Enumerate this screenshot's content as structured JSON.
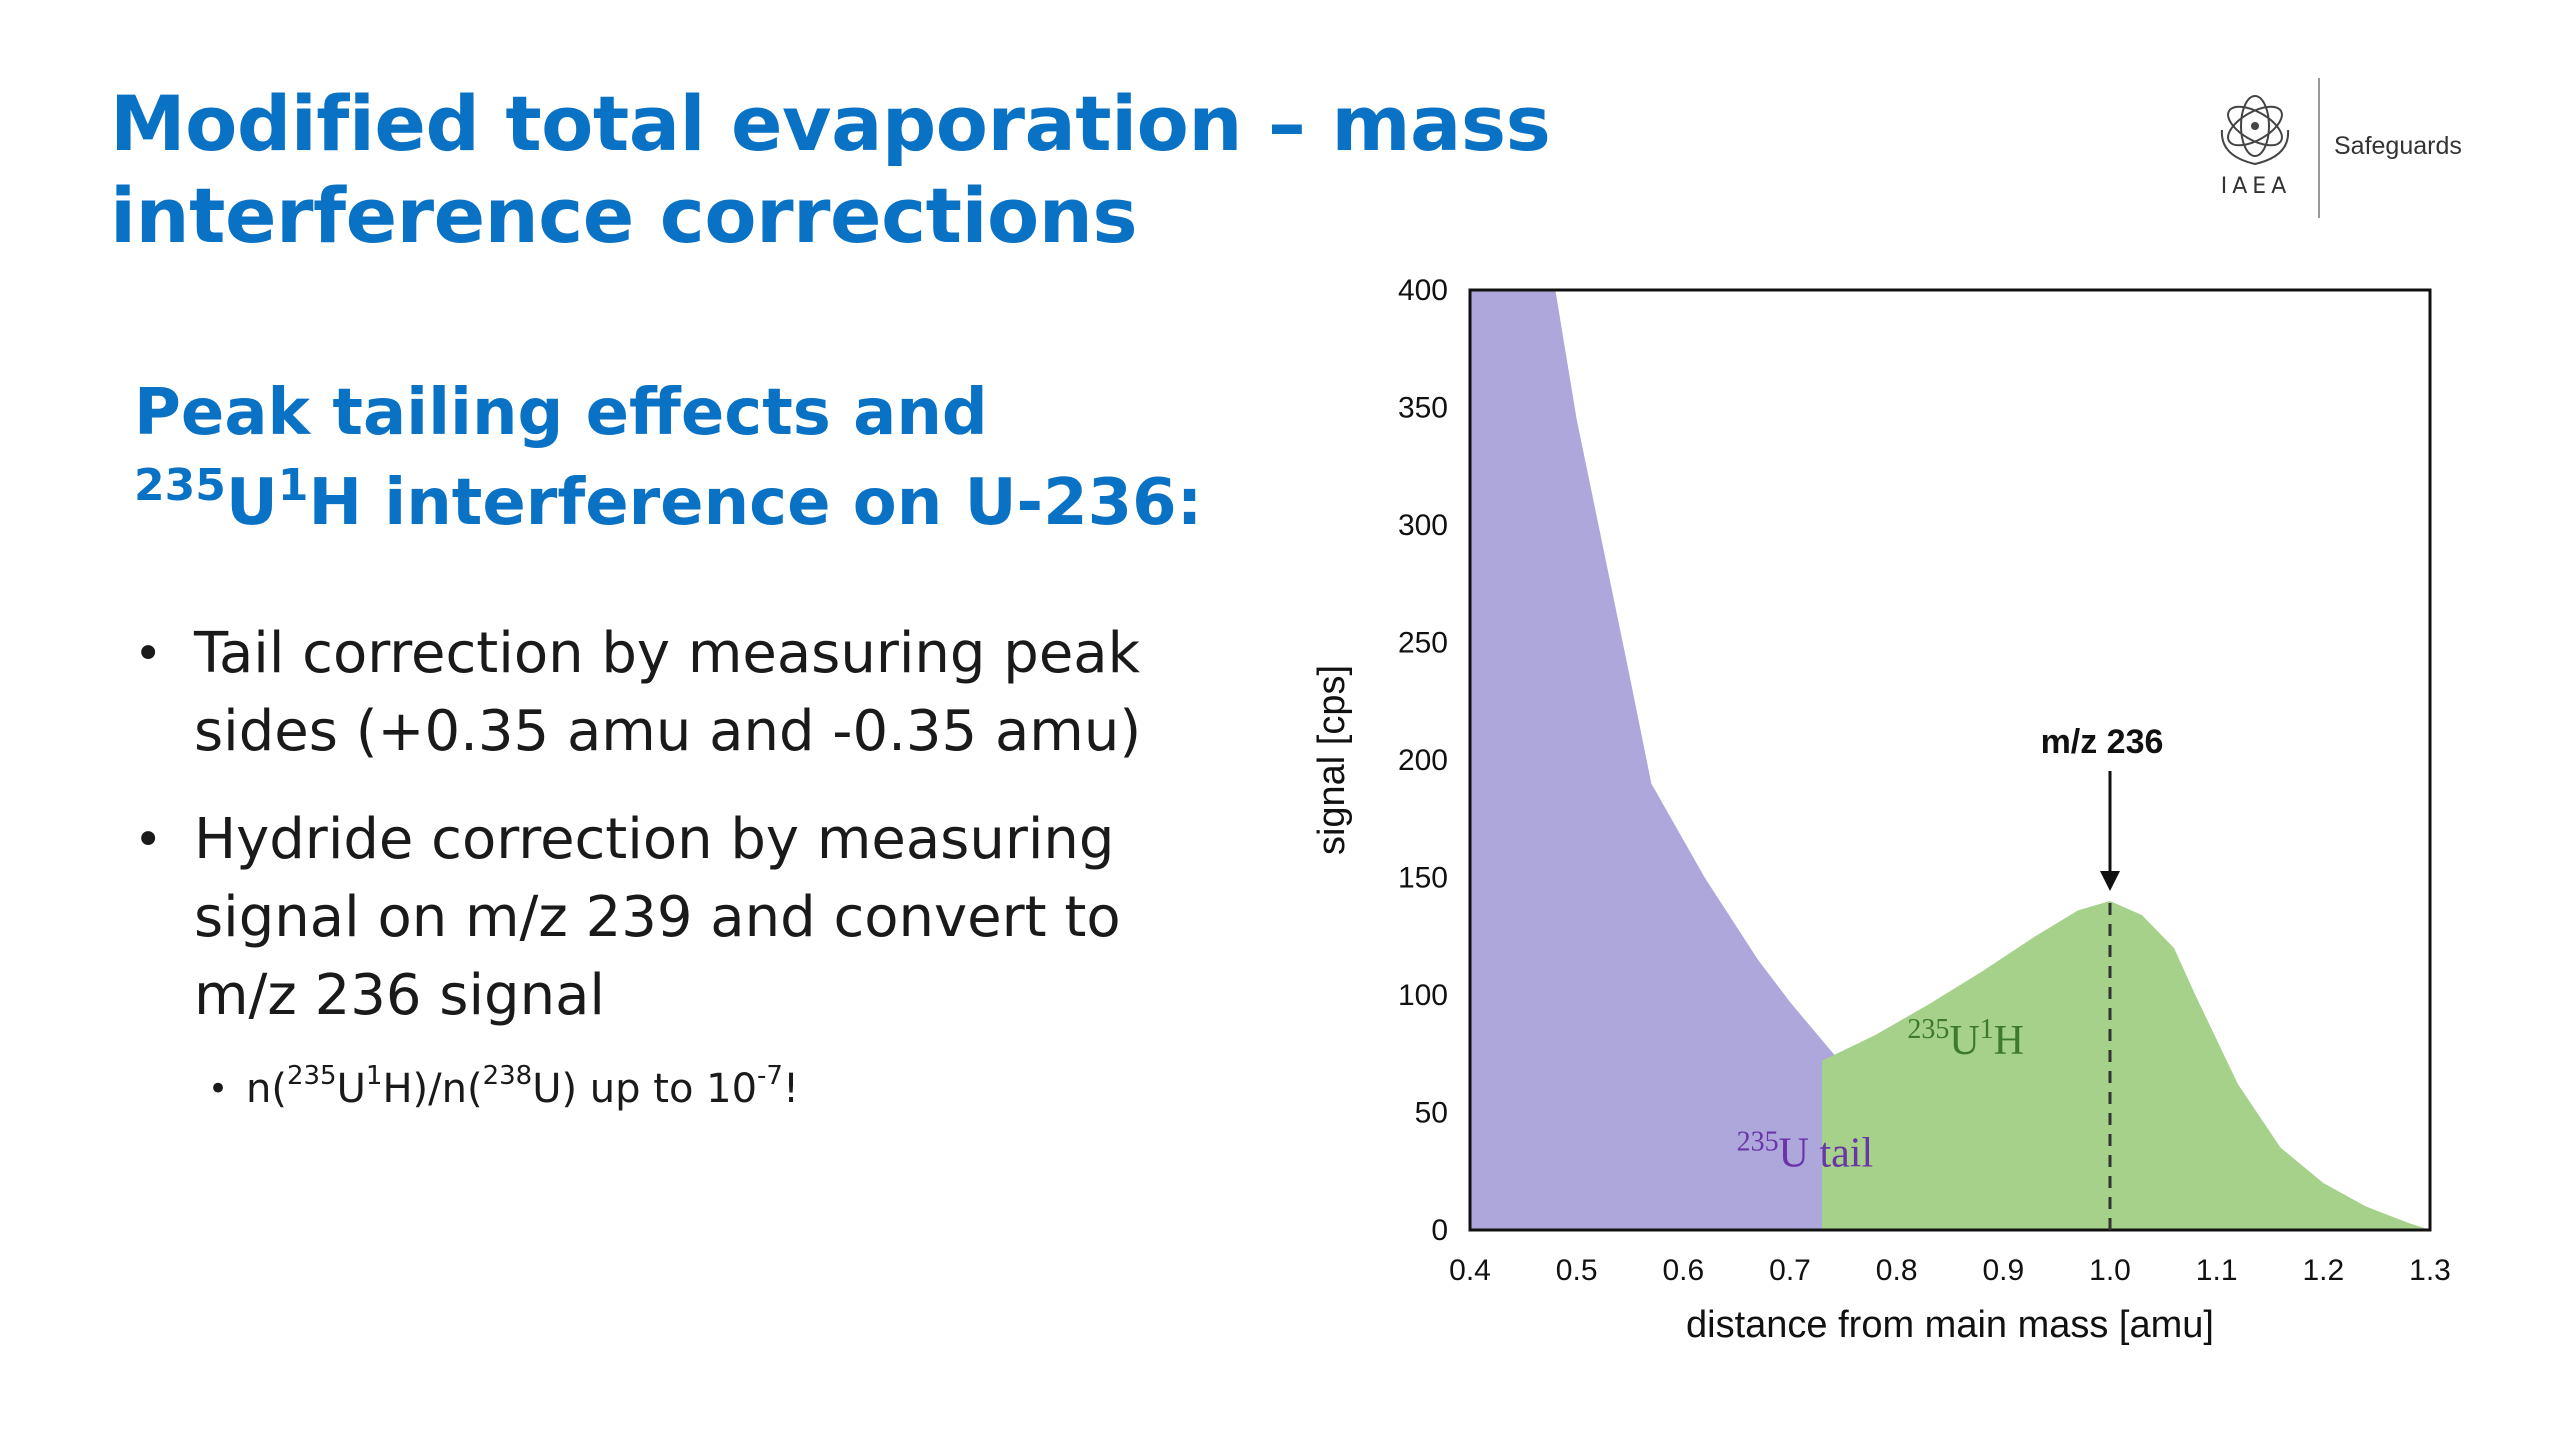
{
  "header": {
    "title": "Modified total evaporation – mass interference corrections",
    "logo": {
      "abbrev": "IAEA",
      "unit": "Safeguards",
      "emblem_icon": "iaea-emblem-icon"
    }
  },
  "subheading": {
    "pre": "Peak tailing effects and ",
    "sup1": "235",
    "mid": "U",
    "sup2": "1",
    "post": "H interference on U-236:"
  },
  "bullets": [
    {
      "text": "Tail correction by measuring peak sides (+0.35 amu and -0.35 amu)"
    },
    {
      "text": "Hydride correction by measuring signal on m/z 239 and convert to m/z 236 signal"
    }
  ],
  "sub_bullet": {
    "p1": "n(",
    "s1": "235",
    "p2": "U",
    "s2": "1",
    "p3": "H)/n(",
    "s3": "238",
    "p4": "U) up to 10",
    "s4": "-7",
    "p5": "!"
  },
  "bullet_glyph": "•",
  "chart_data": {
    "type": "area",
    "xlabel": "distance from main mass [amu]",
    "ylabel": "signal [cps]",
    "xlim": [
      0.4,
      1.3
    ],
    "ylim": [
      0,
      400
    ],
    "x_ticks": [
      "0.4",
      "0.5",
      "0.6",
      "0.7",
      "0.8",
      "0.9",
      "1.0",
      "1.1",
      "1.2",
      "1.3"
    ],
    "y_ticks": [
      "0",
      "50",
      "100",
      "150",
      "200",
      "250",
      "300",
      "350",
      "400"
    ],
    "grid": false,
    "legend": "none",
    "series": [
      {
        "name": "235U tail",
        "label_sup": "235",
        "label_text": "U tail",
        "color": "#ada7dc",
        "label_color": "#6a35a6",
        "x": [
          0.4,
          0.48,
          0.5,
          0.55,
          0.57,
          0.62,
          0.67,
          0.7,
          0.75,
          0.8,
          0.85,
          0.9,
          0.95,
          1.0,
          1.05,
          1.1,
          1.15,
          1.2,
          1.25,
          1.3
        ],
        "y": [
          400,
          400,
          345,
          235,
          190,
          150,
          115,
          97,
          70,
          50,
          36,
          26,
          18,
          13,
          10,
          8,
          6,
          4,
          2,
          0
        ]
      },
      {
        "name": "235U1H",
        "label_sup1": "235",
        "label_mid": "U",
        "label_sup2": "1",
        "label_post": "H",
        "color": "#a6d18a",
        "label_color": "#3d7a2d",
        "x": [
          0.73,
          0.78,
          0.83,
          0.88,
          0.93,
          0.97,
          1.0,
          1.03,
          1.06,
          1.08,
          1.12,
          1.16,
          1.2,
          1.24,
          1.28,
          1.3
        ],
        "y": [
          72,
          83,
          96,
          110,
          125,
          136,
          140,
          134,
          120,
          100,
          62,
          35,
          20,
          10,
          3,
          0
        ]
      }
    ],
    "annotation": {
      "text": "m/z 236",
      "x": 1.0,
      "y": 140
    }
  }
}
